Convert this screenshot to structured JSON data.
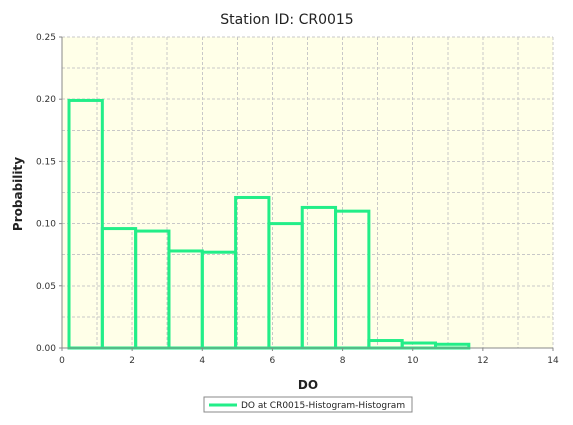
{
  "chart_data": {
    "type": "bar",
    "title": "Station ID: CR0015",
    "xlabel": "DO",
    "ylabel": "Probability",
    "xlim": [
      0,
      14
    ],
    "ylim": [
      0,
      0.25
    ],
    "xticks": [
      "0",
      "2",
      "4",
      "6",
      "8",
      "10",
      "12",
      "14"
    ],
    "yticks": [
      "0.00",
      "0.05",
      "0.10",
      "0.15",
      "0.20",
      "0.25"
    ],
    "grid": true,
    "legend_position": "bottom",
    "series": [
      {
        "name": "DO at CR0015-Histogram-Histogram",
        "color": "#22ee88",
        "bins": [
          {
            "x0": 0.2,
            "x1": 1.15,
            "y": 0.199
          },
          {
            "x0": 1.15,
            "x1": 2.1,
            "y": 0.096
          },
          {
            "x0": 2.1,
            "x1": 3.05,
            "y": 0.094
          },
          {
            "x0": 3.05,
            "x1": 4.0,
            "y": 0.078
          },
          {
            "x0": 4.0,
            "x1": 4.95,
            "y": 0.077
          },
          {
            "x0": 4.95,
            "x1": 5.9,
            "y": 0.121
          },
          {
            "x0": 5.9,
            "x1": 6.85,
            "y": 0.1
          },
          {
            "x0": 6.85,
            "x1": 7.8,
            "y": 0.113
          },
          {
            "x0": 7.8,
            "x1": 8.75,
            "y": 0.11
          },
          {
            "x0": 8.75,
            "x1": 9.7,
            "y": 0.006
          },
          {
            "x0": 9.7,
            "x1": 10.65,
            "y": 0.004
          },
          {
            "x0": 10.65,
            "x1": 11.6,
            "y": 0.003
          }
        ]
      }
    ]
  },
  "colors": {
    "plot_background": "#ffffe8",
    "grid_line": "#c8c8c8",
    "axis_line": "#888888"
  }
}
